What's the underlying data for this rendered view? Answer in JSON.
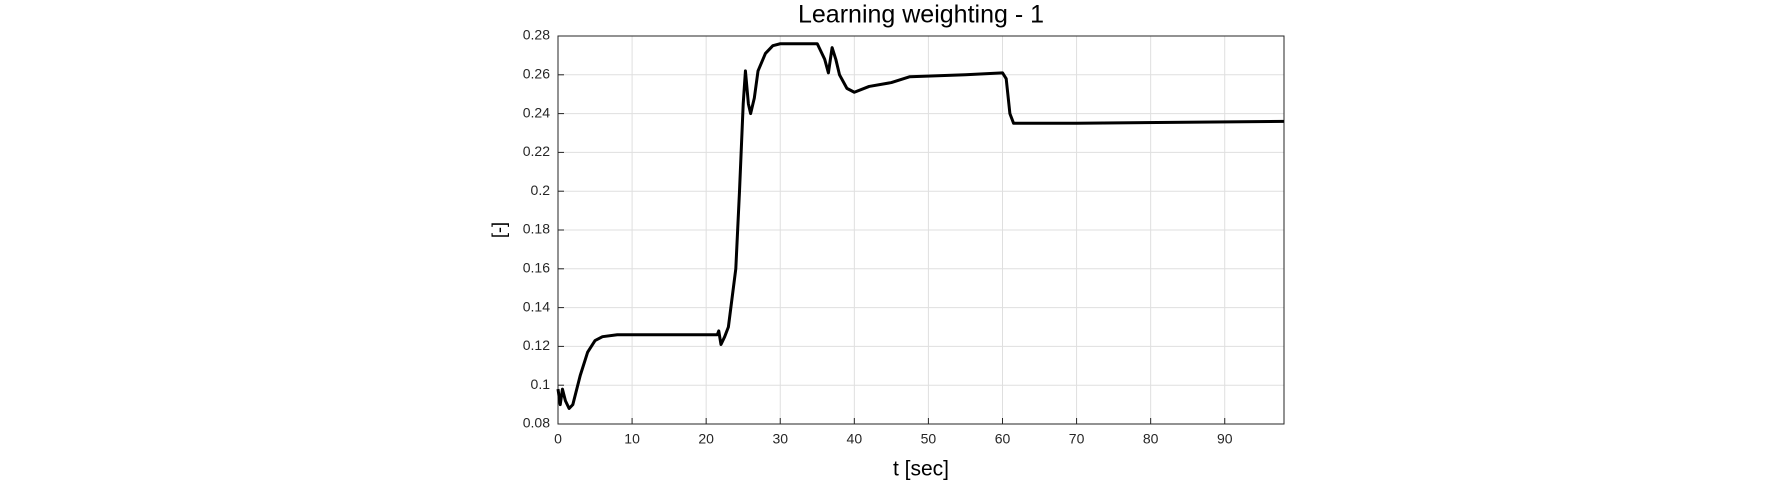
{
  "chart_data": {
    "type": "line",
    "title": "Learning weighting - 1",
    "xlabel": "t [sec]",
    "ylabel": "[-]",
    "xlim": [
      0,
      98
    ],
    "ylim": [
      0.08,
      0.28
    ],
    "xticks": [
      0,
      10,
      20,
      30,
      40,
      50,
      60,
      70,
      80,
      90
    ],
    "yticks": [
      0.08,
      0.1,
      0.12,
      0.14,
      0.16,
      0.18,
      0.2,
      0.22,
      0.24,
      0.26,
      0.28
    ],
    "grid": true,
    "series": [
      {
        "color": "#000000",
        "x": [
          0,
          0.3,
          0.6,
          1,
          1.5,
          2,
          3,
          4,
          5,
          6,
          8,
          10,
          21.5,
          21.7,
          22,
          22.5,
          23,
          24,
          24.5,
          25,
          25.3,
          25.7,
          26,
          26.5,
          27,
          28,
          29,
          30,
          35,
          36,
          36.5,
          37,
          37.5,
          38,
          39,
          40,
          42,
          45,
          47.5,
          55,
          60,
          60.5,
          61,
          61.5,
          70,
          98
        ],
        "values": [
          0.098,
          0.09,
          0.098,
          0.092,
          0.088,
          0.09,
          0.105,
          0.117,
          0.123,
          0.125,
          0.126,
          0.126,
          0.126,
          0.128,
          0.121,
          0.125,
          0.13,
          0.16,
          0.2,
          0.245,
          0.262,
          0.245,
          0.24,
          0.248,
          0.262,
          0.271,
          0.275,
          0.276,
          0.276,
          0.268,
          0.261,
          0.274,
          0.268,
          0.26,
          0.253,
          0.251,
          0.254,
          0.256,
          0.259,
          0.26,
          0.261,
          0.258,
          0.24,
          0.235,
          0.235,
          0.236
        ]
      }
    ]
  }
}
